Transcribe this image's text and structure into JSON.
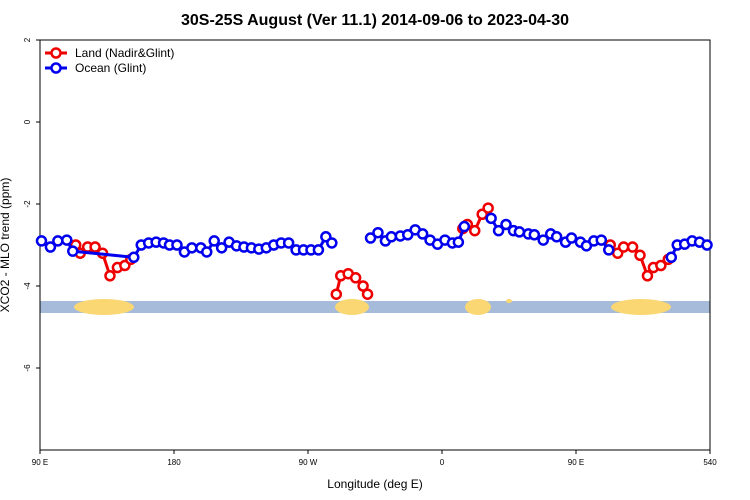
{
  "chart_data": {
    "type": "line",
    "title": "30S-25S August (Ver 11.1)   2014-09-06 to 2023-04-30",
    "x_label": "Longitude (deg E)",
    "y_label": "XCO2 - MLO trend (ppm)",
    "xlim": [
      90,
      540
    ],
    "xticks": [
      {
        "value": 90,
        "label": "90 E"
      },
      180,
      {
        "value": 270,
        "label": "90 W"
      },
      {
        "value": 360,
        "label": "0"
      },
      {
        "value": 450,
        "label": "90 E"
      },
      540
    ],
    "ylim": [
      -8,
      2
    ],
    "yticks": [
      2,
      0,
      -2,
      -4,
      -6
    ],
    "legend": "top-left",
    "series": [
      {
        "name": "Land (Nadir&Glint)",
        "color": "#ee0000",
        "x": [
          114,
          117,
          122,
          127,
          132,
          137,
          142,
          147,
          151,
          null,
          289,
          292,
          297,
          302,
          307,
          310,
          null,
          374,
          377,
          382,
          387,
          391,
          null,
          473,
          478,
          482,
          488,
          493,
          498,
          502,
          507,
          512
        ],
        "values": [
          -3.0,
          -3.2,
          -3.05,
          -3.05,
          -3.2,
          -3.75,
          -3.55,
          -3.5,
          -3.35,
          null,
          -4.2,
          -3.75,
          -3.7,
          -3.8,
          -4.0,
          -4.2,
          null,
          -2.6,
          -2.5,
          -2.65,
          -2.25,
          -2.1,
          null,
          -3.0,
          -3.2,
          -3.05,
          -3.05,
          -3.25,
          -3.75,
          -3.55,
          -3.5,
          -3.35
        ]
      },
      {
        "name": "Ocean (Glint)",
        "color": "#0000ee",
        "x": [
          91,
          97,
          102,
          108,
          112,
          153,
          158,
          163,
          168,
          173,
          177,
          182,
          187,
          192,
          198,
          202,
          207,
          212,
          217,
          222,
          227,
          232,
          237,
          242,
          247,
          252,
          257,
          262,
          267,
          272,
          277,
          282,
          286,
          null,
          312,
          317,
          322,
          326,
          332,
          337,
          342,
          347,
          352,
          357,
          362,
          367,
          371,
          375,
          null,
          393,
          398,
          403,
          408,
          412,
          418,
          422,
          428,
          433,
          437,
          443,
          447,
          453,
          457,
          462,
          467,
          472,
          null,
          514,
          518,
          523,
          528,
          533,
          538
        ],
        "values": [
          -2.9,
          -3.05,
          -2.9,
          -2.88,
          -3.15,
          -3.3,
          -3.0,
          -2.95,
          -2.93,
          -2.95,
          -3.0,
          -3.0,
          -3.17,
          -3.07,
          -3.07,
          -3.17,
          -2.9,
          -3.07,
          -2.93,
          -3.02,
          -3.05,
          -3.07,
          -3.1,
          -3.07,
          -3.0,
          -2.95,
          -2.95,
          -3.12,
          -3.12,
          -3.12,
          -3.12,
          -2.8,
          -2.95,
          null,
          -2.83,
          -2.7,
          -2.9,
          -2.8,
          -2.78,
          -2.75,
          -2.63,
          -2.73,
          -2.88,
          -2.98,
          -2.88,
          -2.95,
          -2.93,
          -2.55,
          null,
          -2.35,
          -2.65,
          -2.5,
          -2.65,
          -2.68,
          -2.73,
          -2.75,
          -2.88,
          -2.73,
          -2.8,
          -2.93,
          -2.83,
          -2.93,
          -3.02,
          -2.9,
          -2.88,
          -3.12,
          null,
          -3.3,
          -3.0,
          -2.98,
          -2.9,
          -2.93,
          -3.0
        ]
      }
    ]
  }
}
